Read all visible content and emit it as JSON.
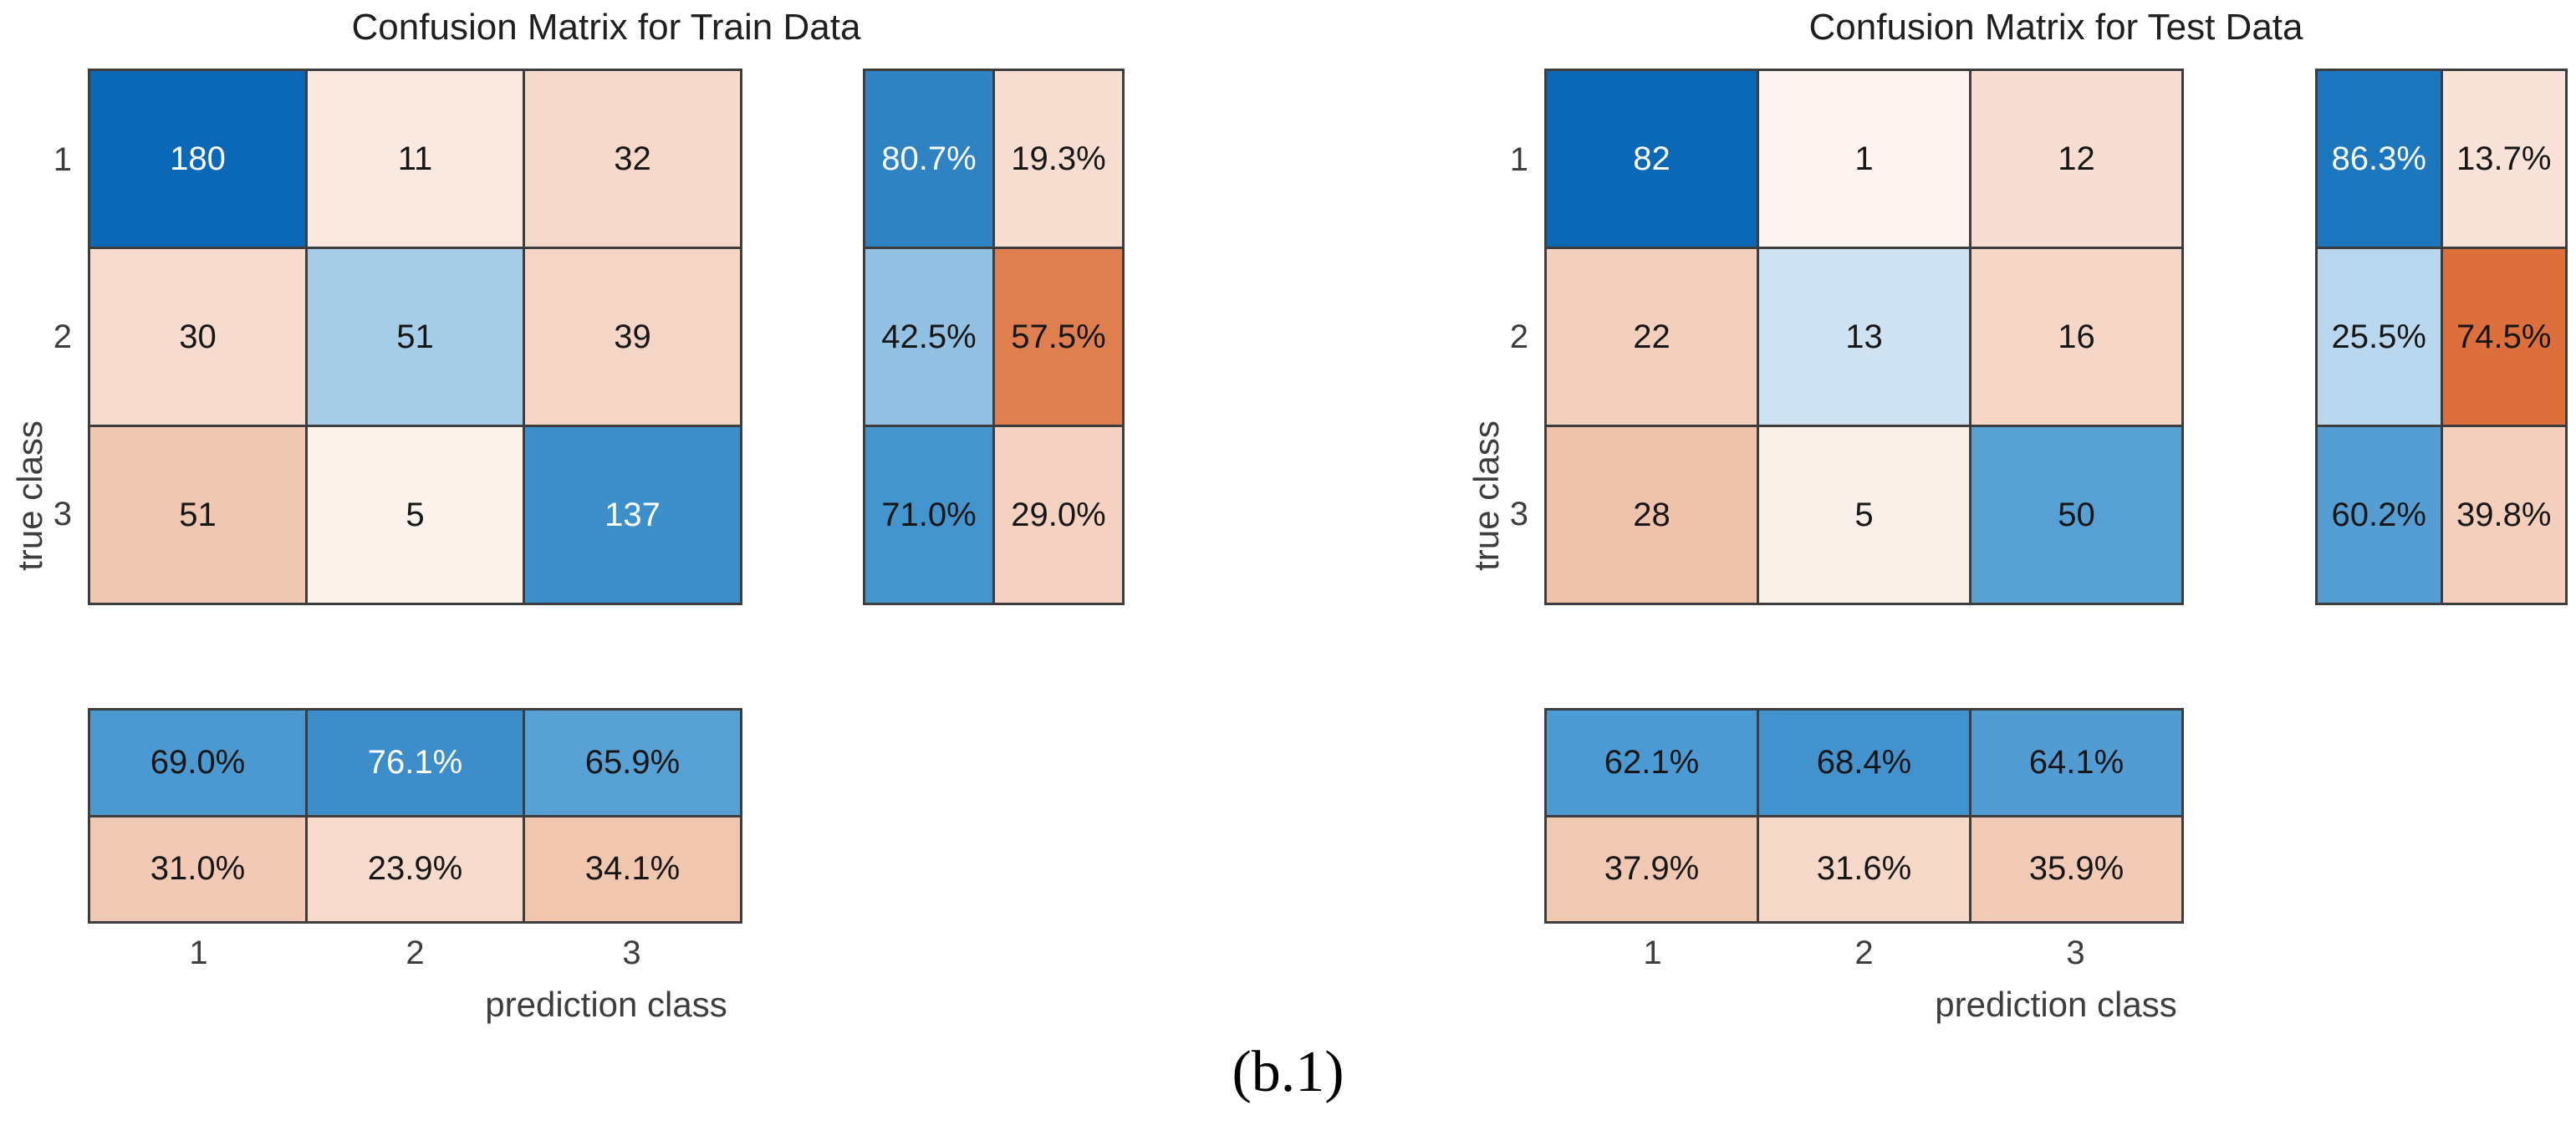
{
  "caption": "(b.1)",
  "palette": {
    "background": "#ffffff",
    "grid_line": "#3d3d3d",
    "diagonal_blue_max": "#0a68b6",
    "off_diagonal_orange_max": "#dd6f3c",
    "white_cell_text": "#ffffff",
    "dark_cell_text": "#161616"
  },
  "charts": [
    {
      "title": "Confusion Matrix for Train Data",
      "x_label": "prediction class",
      "y_label": "true class",
      "row_ticks": [
        "1",
        "2",
        "3"
      ],
      "col_ticks": [
        "1",
        "2",
        "3"
      ],
      "matrix_cells": [
        [
          {
            "t": "180",
            "bg": "#0a68b6",
            "fg": "#ffffff"
          },
          {
            "t": "11",
            "bg": "#fae9e1"
          },
          {
            "t": "32",
            "bg": "#f6d9ca"
          }
        ],
        [
          {
            "t": "30",
            "bg": "#f6dbce"
          },
          {
            "t": "51",
            "bg": "#a6cde8"
          },
          {
            "t": "39",
            "bg": "#f5d6c6"
          }
        ],
        [
          {
            "t": "51",
            "bg": "#f0c7b1"
          },
          {
            "t": "5",
            "bg": "#fdf2ec"
          },
          {
            "t": "137",
            "bg": "#3d8fca",
            "fg": "#ffffff"
          }
        ]
      ],
      "row_summary_cells": [
        [
          {
            "t": "80.7%",
            "bg": "#2f83c3",
            "fg": "#ffffff"
          },
          {
            "t": "19.3%",
            "bg": "#f7ddd0"
          }
        ],
        [
          {
            "t": "42.5%",
            "bg": "#92c1e3"
          },
          {
            "t": "57.5%",
            "bg": "#df7e4f"
          }
        ],
        [
          {
            "t": "71.0%",
            "bg": "#4495ce"
          },
          {
            "t": "29.0%",
            "bg": "#f4d1c1"
          }
        ]
      ],
      "col_summary_cells": [
        [
          {
            "t": "69.0%",
            "bg": "#4c99d2"
          },
          {
            "t": "76.1%",
            "bg": "#3c8dca",
            "fg": "#ffffff"
          },
          {
            "t": "65.9%",
            "bg": "#58a1d5"
          }
        ],
        [
          {
            "t": "31.0%",
            "bg": "#f1c9b4"
          },
          {
            "t": "23.9%",
            "bg": "#f7dccd"
          },
          {
            "t": "34.1%",
            "bg": "#f0c6af"
          }
        ]
      ]
    },
    {
      "title": "Confusion Matrix for Test Data",
      "x_label": "prediction class",
      "y_label": "true class",
      "row_ticks": [
        "1",
        "2",
        "3"
      ],
      "col_ticks": [
        "1",
        "2",
        "3"
      ],
      "matrix_cells": [
        [
          {
            "t": "82",
            "bg": "#0a68b6",
            "fg": "#ffffff"
          },
          {
            "t": "1",
            "bg": "#fdf4ef"
          },
          {
            "t": "12",
            "bg": "#f8ded2"
          }
        ],
        [
          {
            "t": "22",
            "bg": "#f3d0bd"
          },
          {
            "t": "13",
            "bg": "#cee2f2"
          },
          {
            "t": "16",
            "bg": "#f6d7c7"
          }
        ],
        [
          {
            "t": "28",
            "bg": "#efc3ab"
          },
          {
            "t": "5",
            "bg": "#fcf0ea"
          },
          {
            "t": "50",
            "bg": "#56a0d3"
          }
        ]
      ],
      "row_summary_cells": [
        [
          {
            "t": "86.3%",
            "bg": "#1d77bf",
            "fg": "#ffffff"
          },
          {
            "t": "13.7%",
            "bg": "#f9e2d8"
          }
        ],
        [
          {
            "t": "25.5%",
            "bg": "#b9d7ee"
          },
          {
            "t": "74.5%",
            "bg": "#dd6f3c"
          }
        ],
        [
          {
            "t": "60.2%",
            "bg": "#559ed4"
          },
          {
            "t": "39.8%",
            "bg": "#f3cfbc"
          }
        ]
      ],
      "col_summary_cells": [
        [
          {
            "t": "62.1%",
            "bg": "#4c9ad3"
          },
          {
            "t": "68.4%",
            "bg": "#4292cd"
          },
          {
            "t": "64.1%",
            "bg": "#519cd3"
          }
        ],
        [
          {
            "t": "37.9%",
            "bg": "#f1c9b3"
          },
          {
            "t": "31.6%",
            "bg": "#f6d8c8"
          },
          {
            "t": "35.9%",
            "bg": "#f2cbb7"
          }
        ]
      ]
    }
  ],
  "chart_data": [
    {
      "type": "heatmap",
      "title": "Confusion Matrix for Train Data",
      "xlabel": "prediction class",
      "ylabel": "true class",
      "classes": [
        "1",
        "2",
        "3"
      ],
      "counts": [
        [
          180,
          11,
          32
        ],
        [
          30,
          51,
          39
        ],
        [
          51,
          5,
          137
        ]
      ],
      "row_normalized_pct": [
        [
          80.7,
          19.3
        ],
        [
          42.5,
          57.5
        ],
        [
          71.0,
          29.0
        ]
      ],
      "col_normalized_pct": [
        [
          69.0,
          76.1,
          65.9
        ],
        [
          31.0,
          23.9,
          34.1
        ]
      ],
      "legend_position": "none",
      "grid": "cell borders dark gray",
      "color_rule": "diagonal/correct cells blue scaled by value, off-diagonal/incorrect cells orange scaled by value"
    },
    {
      "type": "heatmap",
      "title": "Confusion Matrix for Test Data",
      "xlabel": "prediction class",
      "ylabel": "true class",
      "classes": [
        "1",
        "2",
        "3"
      ],
      "counts": [
        [
          82,
          1,
          12
        ],
        [
          22,
          13,
          16
        ],
        [
          28,
          5,
          50
        ]
      ],
      "row_normalized_pct": [
        [
          86.3,
          13.7
        ],
        [
          25.5,
          74.5
        ],
        [
          60.2,
          39.8
        ]
      ],
      "col_normalized_pct": [
        [
          62.1,
          68.4,
          64.1
        ],
        [
          37.9,
          31.6,
          35.9
        ]
      ],
      "legend_position": "none",
      "grid": "cell borders dark gray",
      "color_rule": "diagonal/correct cells blue scaled by value, off-diagonal/incorrect cells orange scaled by value"
    }
  ]
}
